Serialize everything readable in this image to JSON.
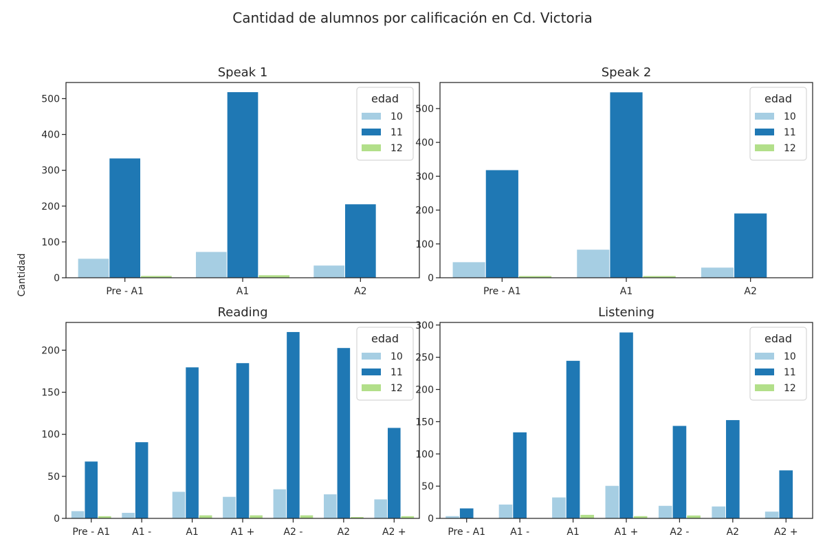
{
  "figure": {
    "suptitle": "Cantidad de alumnos por calificación en Cd. Victoria",
    "ylabel": "Cantidad"
  },
  "legend": {
    "title": "edad",
    "labels": [
      "10",
      "11",
      "12"
    ]
  },
  "colors": {
    "10": "#a6cee3",
    "11": "#1f78b4",
    "12": "#b2df8a",
    "axes": "#262626",
    "background": "#ffffff"
  },
  "chart_data": [
    {
      "type": "bar",
      "title": "Speak 1",
      "ylabel": "Cantidad",
      "categories": [
        "Pre - A1",
        "A1",
        "A2"
      ],
      "series": [
        {
          "name": "10",
          "values": [
            54,
            73,
            35
          ]
        },
        {
          "name": "11",
          "values": [
            334,
            519,
            206
          ]
        },
        {
          "name": "12",
          "values": [
            6,
            8,
            0
          ]
        }
      ],
      "yticks": [
        0,
        100,
        200,
        300,
        400,
        500
      ],
      "ylim": [
        0,
        545
      ],
      "grid": false,
      "legend_position": "top-right"
    },
    {
      "type": "bar",
      "title": "Speak 2",
      "ylabel": "",
      "categories": [
        "Pre - A1",
        "A1",
        "A2"
      ],
      "series": [
        {
          "name": "10",
          "values": [
            47,
            84,
            31
          ]
        },
        {
          "name": "11",
          "values": [
            319,
            549,
            191
          ]
        },
        {
          "name": "12",
          "values": [
            6,
            6,
            0
          ]
        }
      ],
      "yticks": [
        0,
        100,
        200,
        300,
        400,
        500
      ],
      "ylim": [
        0,
        577
      ],
      "grid": false,
      "legend_position": "top-right"
    },
    {
      "type": "bar",
      "title": "Reading",
      "ylabel": "",
      "categories": [
        "Pre - A1",
        "A1 -",
        "A1",
        "A1 +",
        "A2 -",
        "A2",
        "A2 +"
      ],
      "series": [
        {
          "name": "10",
          "values": [
            9,
            7,
            32,
            26,
            35,
            29,
            23
          ]
        },
        {
          "name": "11",
          "values": [
            68,
            91,
            180,
            185,
            222,
            203,
            108
          ]
        },
        {
          "name": "12",
          "values": [
            3,
            0,
            4,
            4,
            4,
            2,
            3
          ]
        }
      ],
      "yticks": [
        0,
        50,
        100,
        150,
        200
      ],
      "ylim": [
        0,
        233
      ],
      "grid": false,
      "legend_position": "top-right"
    },
    {
      "type": "bar",
      "title": "Listening",
      "ylabel": "",
      "categories": [
        "Pre - A1",
        "A1 -",
        "A1",
        "A1 +",
        "A2 -",
        "A2",
        "A2 +"
      ],
      "series": [
        {
          "name": "10",
          "values": [
            4,
            22,
            33,
            51,
            20,
            19,
            11
          ]
        },
        {
          "name": "11",
          "values": [
            16,
            134,
            245,
            289,
            144,
            153,
            75
          ]
        },
        {
          "name": "12",
          "values": [
            0,
            0,
            6,
            4,
            5,
            0,
            0
          ]
        }
      ],
      "yticks": [
        0,
        50,
        100,
        150,
        200,
        250,
        300
      ],
      "ylim": [
        0,
        304
      ],
      "grid": false,
      "legend_position": "top-right"
    }
  ]
}
